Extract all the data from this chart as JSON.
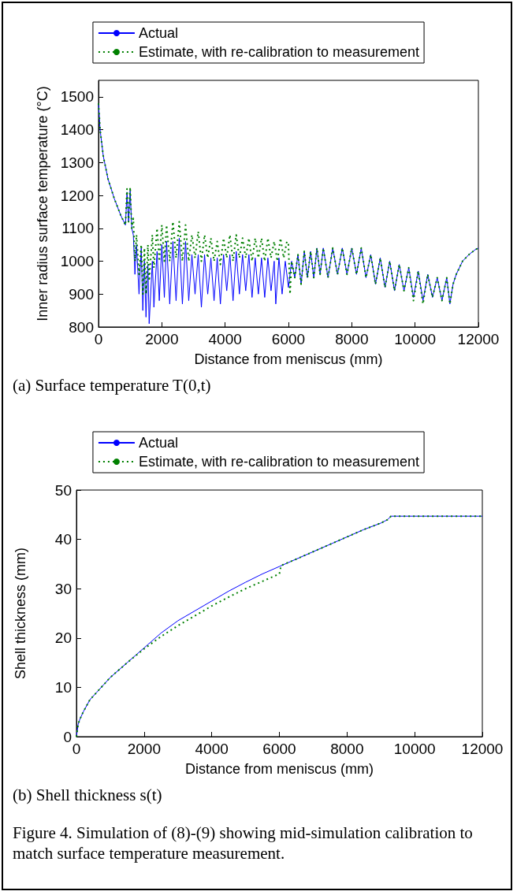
{
  "chart_data": [
    {
      "type": "line",
      "xlabel": "Distance from meniscus (mm)",
      "ylabel": "Inner radius surface temperature (°C)",
      "xlim": [
        0,
        12000
      ],
      "xticks": [
        0,
        2000,
        4000,
        6000,
        8000,
        10000,
        12000
      ],
      "ylim": [
        800,
        1550
      ],
      "yticks": [
        800,
        900,
        1000,
        1100,
        1200,
        1300,
        1400,
        1500
      ],
      "grid": false,
      "legend": "top",
      "marker": "none",
      "annotations": [
        "(a) Surface temperature T(0,t)"
      ],
      "series": [
        {
          "name": "Actual",
          "color": "#0000ff",
          "line_style": "solid",
          "x": [
            0,
            50,
            150,
            300,
            500,
            700,
            850,
            900,
            950,
            1000,
            1050,
            1100,
            1150,
            1200,
            1280,
            1350,
            1400,
            1450,
            1500,
            1560,
            1600,
            1700,
            1750,
            1850,
            1920,
            2000,
            2080,
            2150,
            2250,
            2350,
            2450,
            2550,
            2650,
            2750,
            2850,
            2950,
            3050,
            3150,
            3250,
            3350,
            3450,
            3550,
            3650,
            3750,
            3850,
            3950,
            4050,
            4150,
            4250,
            4350,
            4450,
            4550,
            4650,
            4750,
            4850,
            4950,
            5050,
            5150,
            5250,
            5350,
            5450,
            5550,
            5600,
            5700,
            5800,
            5900,
            6000,
            6100,
            6200,
            6300,
            6400,
            6500,
            6600,
            6700,
            6800,
            6900,
            7000,
            7100,
            7250,
            7400,
            7550,
            7700,
            7850,
            8000,
            8150,
            8300,
            8450,
            8600,
            8750,
            8900,
            9050,
            9200,
            9350,
            9500,
            9650,
            9800,
            9950,
            10100,
            10250,
            10400,
            10550,
            10700,
            10850,
            11000,
            11100,
            11200,
            11300,
            11500,
            11700,
            11900,
            12000
          ],
          "values": [
            1480,
            1400,
            1320,
            1250,
            1190,
            1140,
            1110,
            1210,
            1120,
            1215,
            1100,
            1080,
            960,
            1050,
            900,
            1040,
            850,
            1000,
            830,
            990,
            810,
            1000,
            860,
            1030,
            880,
            1050,
            890,
            1060,
            870,
            1060,
            880,
            1070,
            870,
            1060,
            880,
            1020,
            900,
            1020,
            860,
            1020,
            900,
            1010,
            880,
            1010,
            870,
            1020,
            910,
            1020,
            880,
            1030,
            900,
            1020,
            910,
            1020,
            890,
            1010,
            900,
            1010,
            890,
            1010,
            910,
            1000,
            870,
            1010,
            900,
            1000,
            920,
            1000,
            950,
            1020,
            930,
            1030,
            950,
            1030,
            950,
            1040,
            960,
            1040,
            950,
            1040,
            960,
            1040,
            960,
            1040,
            960,
            1040,
            950,
            1020,
            930,
            1010,
            920,
            1000,
            910,
            990,
            910,
            980,
            890,
            970,
            880,
            960,
            890,
            950,
            880,
            950,
            870,
            930,
            960,
            1000,
            1020,
            1035,
            1040
          ]
        },
        {
          "name": "Estimate, with re-calibration to measurement",
          "color": "#008000",
          "line_style": "dotted",
          "x": [
            0,
            50,
            150,
            300,
            500,
            700,
            850,
            900,
            950,
            1000,
            1050,
            1100,
            1150,
            1200,
            1280,
            1350,
            1400,
            1450,
            1500,
            1560,
            1600,
            1700,
            1750,
            1850,
            1920,
            2000,
            2080,
            2150,
            2250,
            2350,
            2450,
            2550,
            2650,
            2750,
            2850,
            2950,
            3050,
            3150,
            3250,
            3350,
            3450,
            3550,
            3650,
            3750,
            3850,
            3950,
            4050,
            4150,
            4250,
            4350,
            4450,
            4550,
            4650,
            4750,
            4850,
            4950,
            5050,
            5150,
            5250,
            5350,
            5450,
            5550,
            5650,
            5750,
            5850,
            5950,
            6000,
            6050,
            6100,
            6200,
            6300,
            6400,
            6500,
            6600,
            6700,
            6800,
            6900,
            7000,
            7100,
            7250,
            7400,
            7550,
            7700,
            7850,
            8000,
            8150,
            8300,
            8450,
            8600,
            8750,
            8900,
            9050,
            9200,
            9350,
            9500,
            9650,
            9800,
            9950,
            10100,
            10250,
            10400,
            10550,
            10700,
            10850,
            11000,
            11100,
            11200,
            11300,
            11500,
            11700,
            11900,
            12000
          ],
          "values": [
            1480,
            1400,
            1320,
            1250,
            1190,
            1140,
            1110,
            1220,
            1120,
            1225,
            1100,
            1130,
            1000,
            1080,
            960,
            1050,
            900,
            1040,
            900,
            1050,
            940,
            1080,
            980,
            1100,
            1000,
            1110,
            1000,
            1110,
            1000,
            1120,
            1010,
            1120,
            1000,
            1110,
            1000,
            1080,
            1010,
            1090,
            1000,
            1080,
            1010,
            1070,
            1000,
            1060,
            990,
            1070,
            1010,
            1080,
            1000,
            1080,
            1010,
            1070,
            1010,
            1070,
            1000,
            1070,
            1010,
            1070,
            1000,
            1070,
            1010,
            1060,
            1000,
            1070,
            1010,
            1060,
            1050,
            900,
            1000,
            950,
            1020,
            930,
            1030,
            950,
            1030,
            950,
            1040,
            960,
            1040,
            950,
            1040,
            960,
            1040,
            960,
            1040,
            960,
            1040,
            950,
            1020,
            930,
            1010,
            920,
            1000,
            910,
            990,
            910,
            980,
            880,
            970,
            870,
            960,
            890,
            950,
            880,
            950,
            870,
            930,
            960,
            1000,
            1020,
            1035,
            1040
          ]
        }
      ]
    },
    {
      "type": "line",
      "xlabel": "Distance from meniscus (mm)",
      "ylabel": "Shell thickness (mm)",
      "xlim": [
        0,
        12000
      ],
      "xticks": [
        0,
        2000,
        4000,
        6000,
        8000,
        10000,
        12000
      ],
      "ylim": [
        0,
        50
      ],
      "yticks": [
        0,
        10,
        20,
        30,
        40,
        50
      ],
      "grid": false,
      "legend": "top",
      "marker": "none",
      "annotations": [
        "(b) Shell thickness s(t)",
        "Figure 4. Simulation of (8)-(9) showing mid-simulation calibration to match surface temperature measurement."
      ],
      "series": [
        {
          "name": "Actual",
          "color": "#0000ff",
          "line_style": "solid",
          "x": [
            0,
            50,
            100,
            200,
            400,
            600,
            800,
            1000,
            1500,
            2000,
            2500,
            3000,
            3500,
            4000,
            4500,
            5000,
            5500,
            6000,
            6500,
            7000,
            7500,
            8000,
            8500,
            9000,
            9200,
            9300,
            12000
          ],
          "values": [
            0,
            2.5,
            3.5,
            5,
            7.5,
            9,
            10.5,
            12,
            15,
            18,
            21,
            23.5,
            25.5,
            27.5,
            29.5,
            31.3,
            33,
            34.5,
            36,
            37.5,
            39,
            40.5,
            42,
            43.3,
            44,
            44.7,
            44.7
          ]
        },
        {
          "name": "Estimate, with re-calibration to measurement",
          "color": "#008000",
          "line_style": "dotted",
          "x": [
            0,
            50,
            100,
            200,
            400,
            600,
            800,
            1000,
            1500,
            2000,
            2500,
            3000,
            3500,
            4000,
            4500,
            5000,
            5500,
            6000,
            6050,
            6500,
            7000,
            7500,
            8000,
            8500,
            9000,
            9200,
            9300,
            12000
          ],
          "values": [
            0,
            2.5,
            3.5,
            5,
            7.5,
            9,
            10.5,
            12,
            15,
            17.8,
            20.3,
            22.5,
            24.5,
            26.5,
            28.3,
            30,
            31.5,
            33,
            34.7,
            36,
            37.5,
            39,
            40.5,
            42,
            43.3,
            44,
            44.7,
            44.7
          ]
        }
      ]
    }
  ]
}
